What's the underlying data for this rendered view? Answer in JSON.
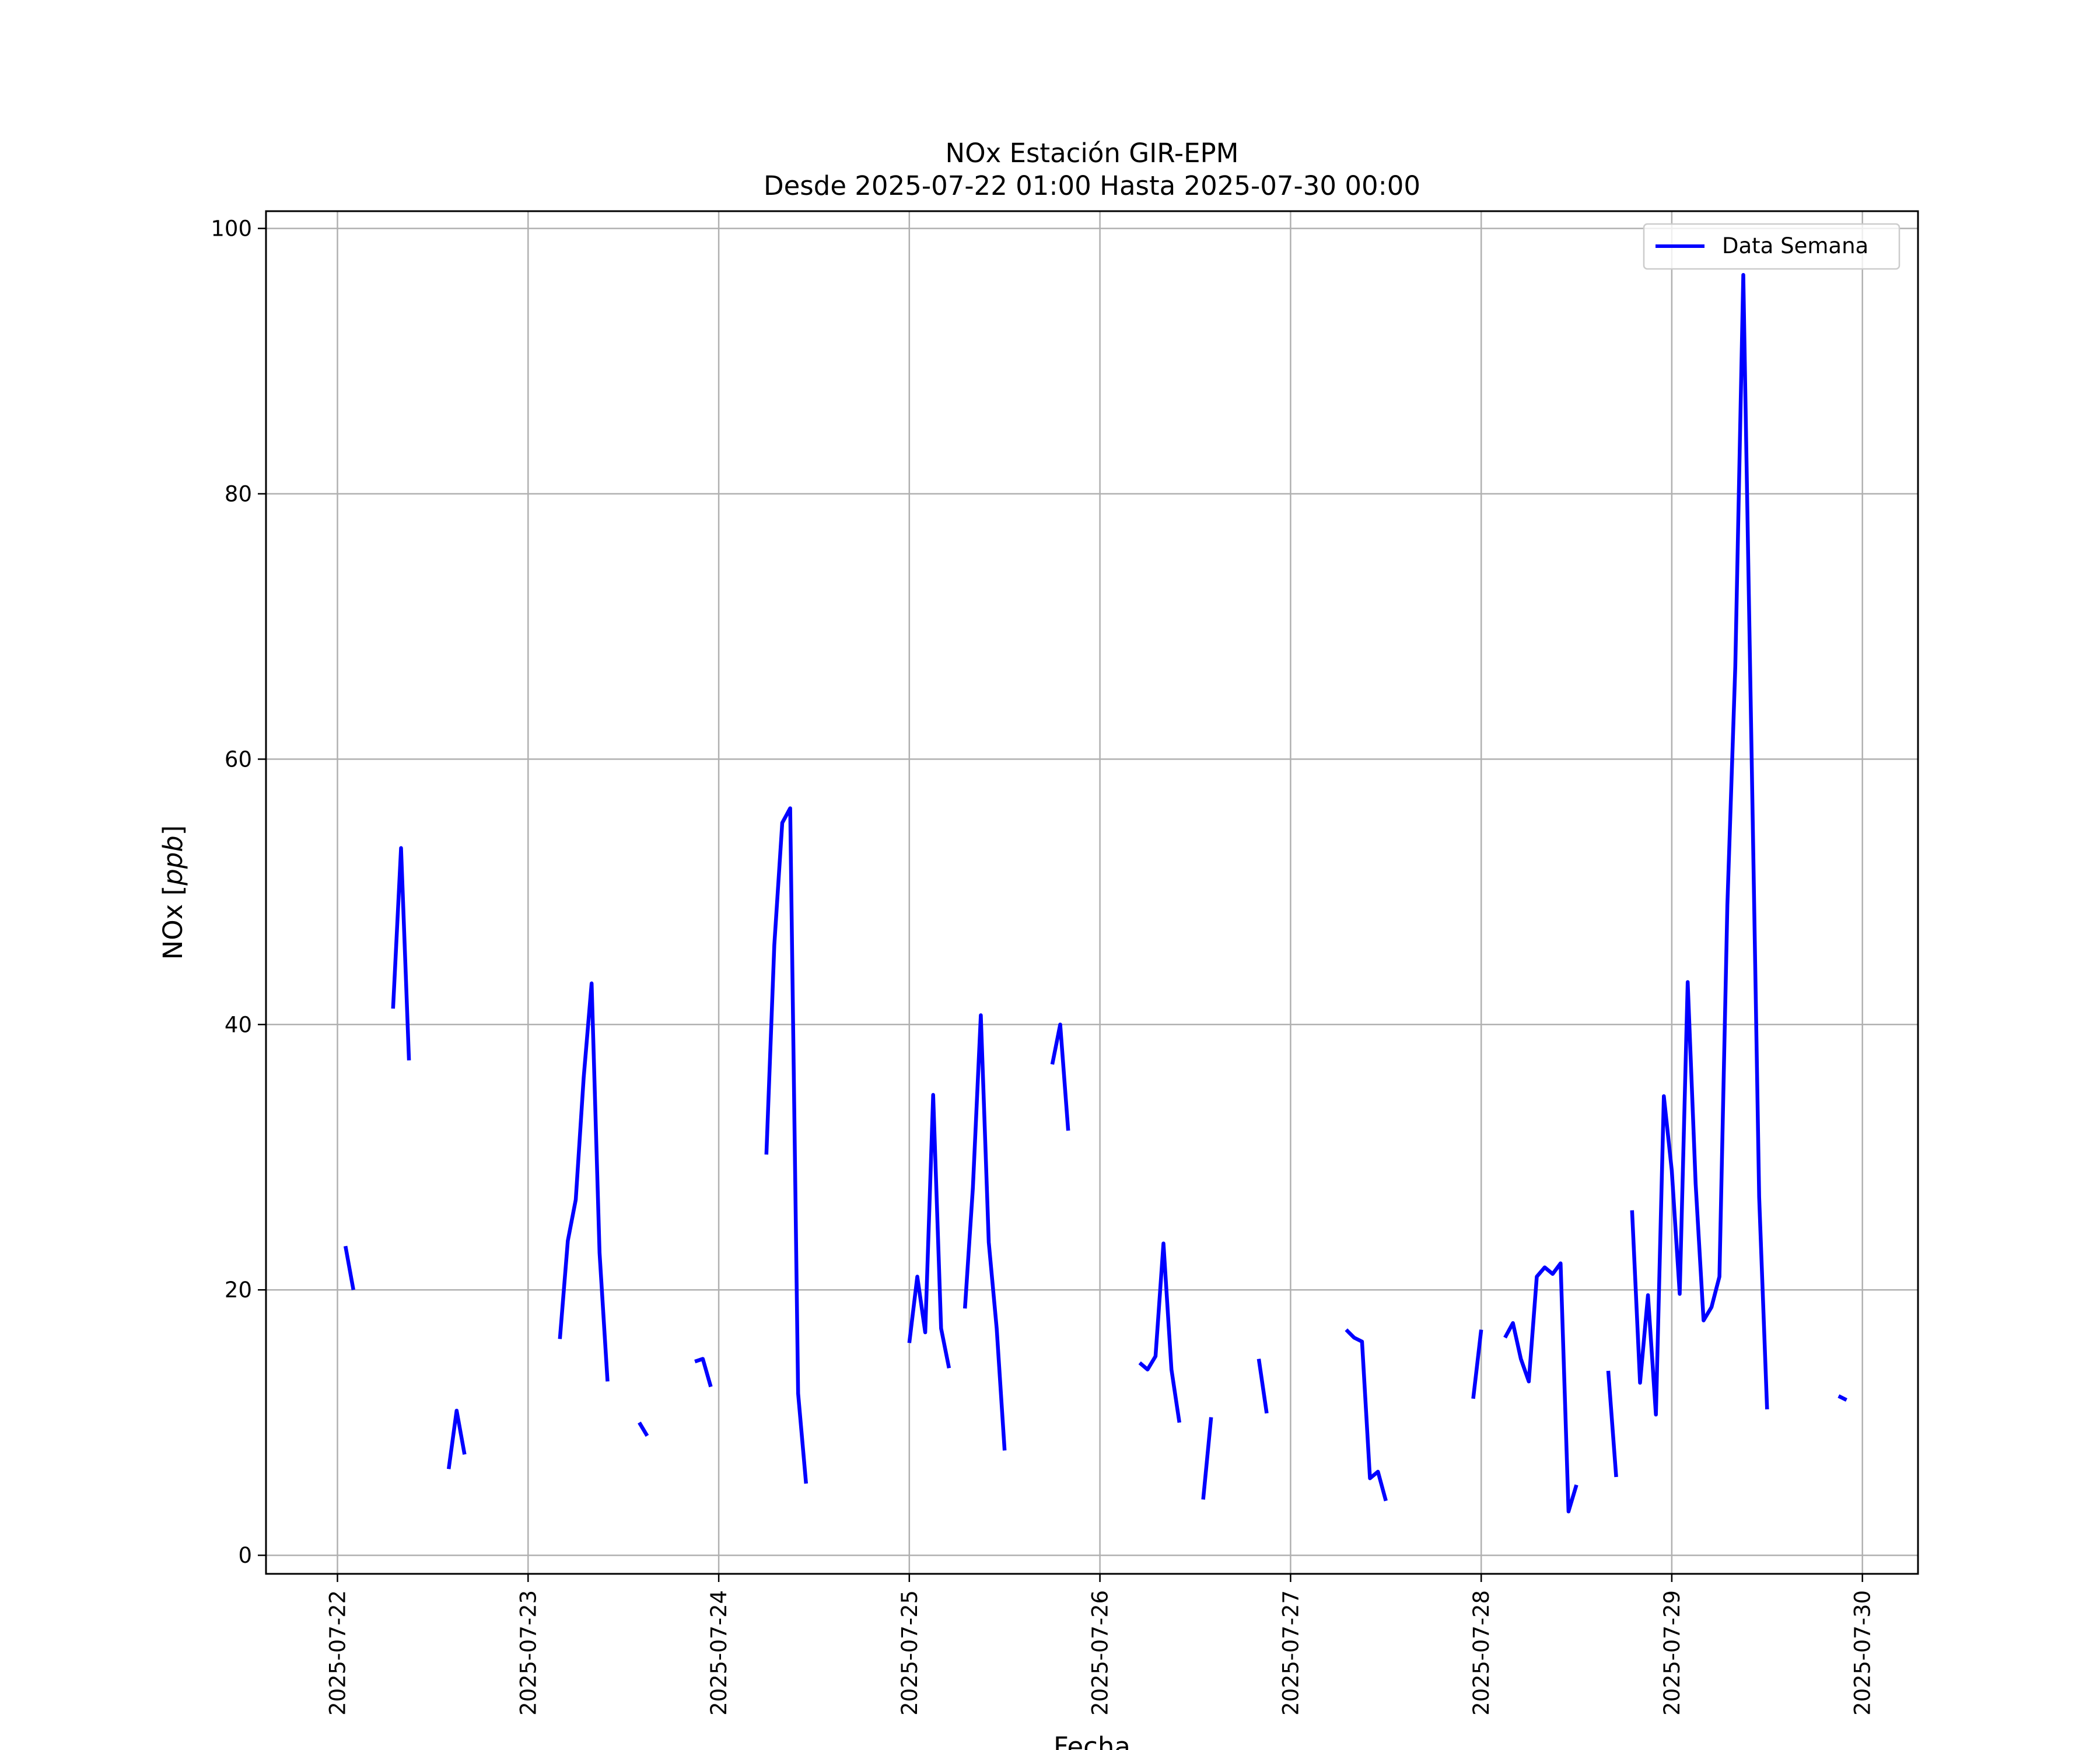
{
  "chart_data": {
    "type": "line",
    "title": "NOx Estación GIR-EPM",
    "subtitle": "Desde 2025-07-22 01:00 Hasta 2025-07-30 00:00",
    "xlabel": "Fecha",
    "ylabel_text": "NOx [",
    "ylabel_italic": "ppb",
    "ylabel_close": "]",
    "ylim": [
      -1.4,
      101.3
    ],
    "xlim": [
      "2025-07-21 15:00",
      "2025-07-30 07:00"
    ],
    "yticks": [
      0,
      20,
      40,
      60,
      80,
      100
    ],
    "xticks": [
      "2025-07-22",
      "2025-07-23",
      "2025-07-24",
      "2025-07-25",
      "2025-07-26",
      "2025-07-27",
      "2025-07-28",
      "2025-07-29",
      "2025-07-30"
    ],
    "grid": true,
    "legend_position": "top-right",
    "series": [
      {
        "name": "Data Semana",
        "color": "#0000ff",
        "segments": [
          [
            [
              "2025-07-22 01:00",
              23.3
            ],
            [
              "2025-07-22 02:00",
              20.0
            ]
          ],
          [
            [
              "2025-07-22 07:00",
              41.2
            ],
            [
              "2025-07-22 08:00",
              53.3
            ],
            [
              "2025-07-22 09:00",
              37.3
            ]
          ],
          [
            [
              "2025-07-22 14:00",
              6.5
            ],
            [
              "2025-07-22 15:00",
              10.9
            ],
            [
              "2025-07-22 16:00",
              7.6
            ]
          ],
          [
            [
              "2025-07-23 04:00",
              16.3
            ],
            [
              "2025-07-23 05:00",
              23.7
            ],
            [
              "2025-07-23 06:00",
              26.8
            ],
            [
              "2025-07-23 07:00",
              36.0
            ],
            [
              "2025-07-23 08:00",
              43.1
            ],
            [
              "2025-07-23 09:00",
              22.8
            ],
            [
              "2025-07-23 10:00",
              13.1
            ]
          ],
          [
            [
              "2025-07-23 14:00",
              10.0
            ],
            [
              "2025-07-23 15:00",
              9.0
            ]
          ],
          [
            [
              "2025-07-23 21:00",
              14.6
            ],
            [
              "2025-07-23 22:00",
              14.8
            ],
            [
              "2025-07-23 23:00",
              12.7
            ]
          ],
          [
            [
              "2025-07-24 06:00",
              30.2
            ],
            [
              "2025-07-24 07:00",
              46.0
            ],
            [
              "2025-07-24 08:00",
              55.2
            ],
            [
              "2025-07-24 09:00",
              56.3
            ],
            [
              "2025-07-24 10:00",
              12.2
            ],
            [
              "2025-07-24 11:00",
              5.4
            ]
          ],
          [
            [
              "2025-07-25 00:00",
              16.0
            ],
            [
              "2025-07-25 01:00",
              21.0
            ],
            [
              "2025-07-25 02:00",
              16.8
            ],
            [
              "2025-07-25 03:00",
              34.7
            ],
            [
              "2025-07-25 04:00",
              17.1
            ],
            [
              "2025-07-25 05:00",
              14.1
            ]
          ],
          [
            [
              "2025-07-25 07:00",
              18.6
            ],
            [
              "2025-07-25 08:00",
              27.7
            ],
            [
              "2025-07-25 09:00",
              40.7
            ],
            [
              "2025-07-25 10:00",
              23.6
            ],
            [
              "2025-07-25 11:00",
              17.1
            ],
            [
              "2025-07-25 12:00",
              7.9
            ]
          ],
          [
            [
              "2025-07-25 18:00",
              37.0
            ],
            [
              "2025-07-25 19:00",
              40.0
            ],
            [
              "2025-07-25 20:00",
              32.0
            ]
          ],
          [
            [
              "2025-07-26 05:00",
              14.5
            ],
            [
              "2025-07-26 06:00",
              14.0
            ],
            [
              "2025-07-26 07:00",
              15.0
            ],
            [
              "2025-07-26 08:00",
              23.5
            ],
            [
              "2025-07-26 09:00",
              14.0
            ],
            [
              "2025-07-26 10:00",
              10.0
            ]
          ],
          [
            [
              "2025-07-26 13:00",
              4.2
            ],
            [
              "2025-07-26 14:00",
              10.4
            ]
          ],
          [
            [
              "2025-07-26 20:00",
              14.8
            ],
            [
              "2025-07-26 21:00",
              10.7
            ]
          ],
          [
            [
              "2025-07-27 07:00",
              17.0
            ],
            [
              "2025-07-27 08:00",
              16.4
            ],
            [
              "2025-07-27 09:00",
              16.1
            ],
            [
              "2025-07-27 10:00",
              5.8
            ],
            [
              "2025-07-27 11:00",
              6.3
            ],
            [
              "2025-07-27 12:00",
              4.1
            ]
          ],
          [
            [
              "2025-07-27 23:00",
              11.8
            ],
            [
              "2025-07-28 00:00",
              17.0
            ]
          ],
          [
            [
              "2025-07-28 03:00",
              16.4
            ],
            [
              "2025-07-28 04:00",
              17.5
            ],
            [
              "2025-07-28 05:00",
              14.8
            ],
            [
              "2025-07-28 06:00",
              13.1
            ],
            [
              "2025-07-28 07:00",
              21.0
            ],
            [
              "2025-07-28 08:00",
              21.7
            ],
            [
              "2025-07-28 09:00",
              21.2
            ],
            [
              "2025-07-28 10:00",
              22.0
            ],
            [
              "2025-07-28 11:00",
              3.3
            ],
            [
              "2025-07-28 12:00",
              5.3
            ]
          ],
          [
            [
              "2025-07-28 16:00",
              13.9
            ],
            [
              "2025-07-28 17:00",
              5.9
            ]
          ],
          [
            [
              "2025-07-28 19:00",
              26.0
            ],
            [
              "2025-07-28 20:00",
              13.0
            ],
            [
              "2025-07-28 21:00",
              19.6
            ],
            [
              "2025-07-28 22:00",
              10.6
            ],
            [
              "2025-07-28 23:00",
              34.6
            ],
            [
              "2025-07-29 00:00",
              29.0
            ],
            [
              "2025-07-29 01:00",
              19.7
            ],
            [
              "2025-07-29 02:00",
              43.2
            ],
            [
              "2025-07-29 03:00",
              28.0
            ],
            [
              "2025-07-29 04:00",
              17.7
            ],
            [
              "2025-07-29 05:00",
              18.7
            ],
            [
              "2025-07-29 06:00",
              21.0
            ],
            [
              "2025-07-29 07:00",
              49.0
            ],
            [
              "2025-07-29 08:00",
              67.0
            ],
            [
              "2025-07-29 09:00",
              96.5
            ],
            [
              "2025-07-29 10:00",
              62.0
            ],
            [
              "2025-07-29 11:00",
              27.0
            ],
            [
              "2025-07-29 12:00",
              11.0
            ]
          ],
          [
            [
              "2025-07-29 21:00",
              12.0
            ],
            [
              "2025-07-29 22:00",
              11.7
            ]
          ]
        ]
      }
    ]
  }
}
